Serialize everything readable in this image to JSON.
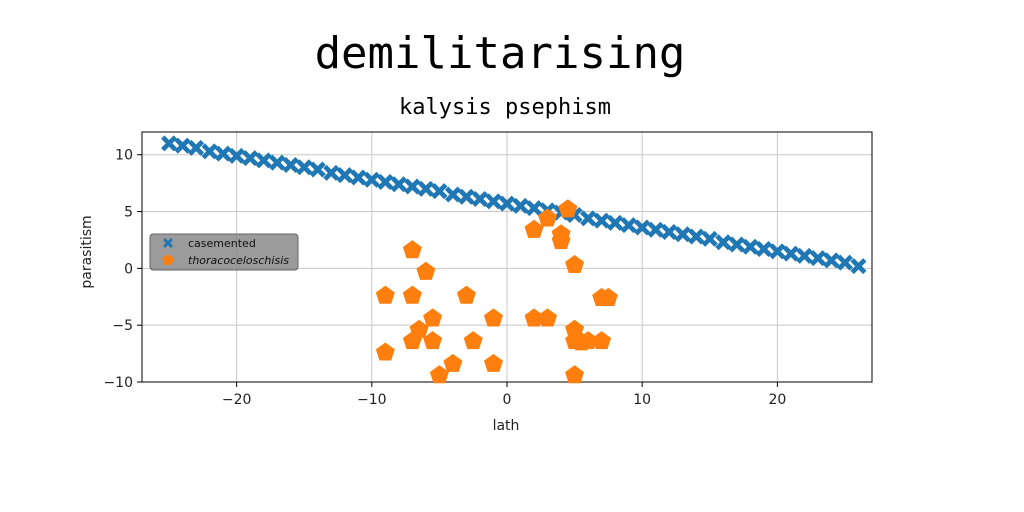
{
  "chart_data": {
    "type": "scatter",
    "title": "demilitarising",
    "subtitle": "kalysis psephism",
    "xlabel": "lath",
    "ylabel": "parasitism",
    "xlim": [
      -27,
      27
    ],
    "ylim": [
      -10,
      12
    ],
    "xticks": [
      -20,
      -10,
      0,
      10,
      20
    ],
    "yticks": [
      -10,
      -5,
      0,
      5,
      10
    ],
    "xtick_labels": [
      "−20",
      "−10",
      "0",
      "10",
      "20"
    ],
    "ytick_labels": [
      "−10",
      "−5",
      "0",
      "5",
      "10"
    ],
    "grid": true,
    "legend_position": "left",
    "series": [
      {
        "name": "casemented",
        "marker": "x",
        "color": "#1f77b4",
        "x": [
          -25.0,
          -24.0,
          -23.0,
          -22.0,
          -21.0,
          -20.0,
          -19.0,
          -18.0,
          -17.0,
          -16.0,
          -15.0,
          -14.0,
          -13.0,
          -12.0,
          -11.0,
          -10.0,
          -9.0,
          -8.0,
          -7.0,
          -6.0,
          -5.0,
          -4.0,
          -3.0,
          -2.0,
          -1.0,
          0.0,
          1.0,
          2.0,
          3.0,
          4.0,
          5.0,
          6.0,
          7.0,
          8.0,
          9.0,
          10.0,
          11.0,
          12.0,
          13.0,
          14.0,
          15.0,
          16.0,
          17.0,
          18.0,
          19.0,
          20.0,
          21.0,
          22.0,
          23.0,
          24.0,
          25.0,
          26.0
        ],
        "y": [
          11.0,
          10.8,
          10.6,
          10.3,
          10.1,
          9.9,
          9.7,
          9.5,
          9.3,
          9.1,
          8.9,
          8.7,
          8.4,
          8.2,
          8.0,
          7.8,
          7.6,
          7.4,
          7.2,
          7.0,
          6.8,
          6.5,
          6.3,
          6.1,
          5.9,
          5.7,
          5.5,
          5.3,
          5.1,
          4.9,
          4.7,
          4.4,
          4.2,
          4.0,
          3.8,
          3.6,
          3.4,
          3.2,
          3.0,
          2.8,
          2.6,
          2.3,
          2.1,
          1.9,
          1.7,
          1.5,
          1.3,
          1.1,
          0.9,
          0.7,
          0.5,
          0.2
        ]
      },
      {
        "name": "thoracoceloschisis",
        "marker": "pentagon",
        "color": "#ff7f0e",
        "x": [
          -7.0,
          -6.0,
          -9.0,
          -7.0,
          -5.5,
          -6.5,
          -7.0,
          -9.0,
          -5.5,
          -3.0,
          -4.0,
          -5.0,
          -2.5,
          -1.0,
          -1.0,
          2.0,
          2.0,
          3.0,
          3.0,
          4.0,
          4.0,
          4.5,
          5.0,
          5.0,
          5.0,
          5.0,
          5.5,
          6.0,
          7.0,
          7.0,
          7.5
        ],
        "y": [
          1.6,
          -0.3,
          -2.4,
          -2.4,
          -4.4,
          -5.4,
          -6.4,
          -7.4,
          -6.4,
          -2.4,
          -8.4,
          -9.4,
          -6.4,
          -4.4,
          -8.4,
          3.4,
          -4.4,
          4.4,
          -4.4,
          3.0,
          2.4,
          5.2,
          0.3,
          -5.4,
          -6.4,
          -9.4,
          -6.5,
          -6.4,
          -6.4,
          -2.6,
          -2.6
        ]
      }
    ]
  }
}
